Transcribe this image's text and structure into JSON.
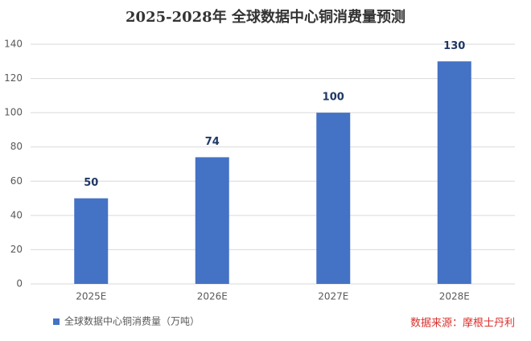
{
  "chart_data": {
    "type": "bar",
    "title": "2025-2028年 全球数据中心铜消费量预测",
    "categories": [
      "2025E",
      "2026E",
      "2027E",
      "2028E"
    ],
    "series": [
      {
        "name": "全球数据中心铜消费量（万吨）",
        "color": "#4472c4",
        "values": [
          50,
          74,
          100,
          130
        ]
      }
    ],
    "ylim": [
      0,
      140
    ],
    "yticks": [
      0,
      20,
      40,
      60,
      80,
      100,
      120,
      140
    ],
    "grid": true,
    "legend": "bottom-left",
    "source": "数据来源：摩根士丹利"
  }
}
